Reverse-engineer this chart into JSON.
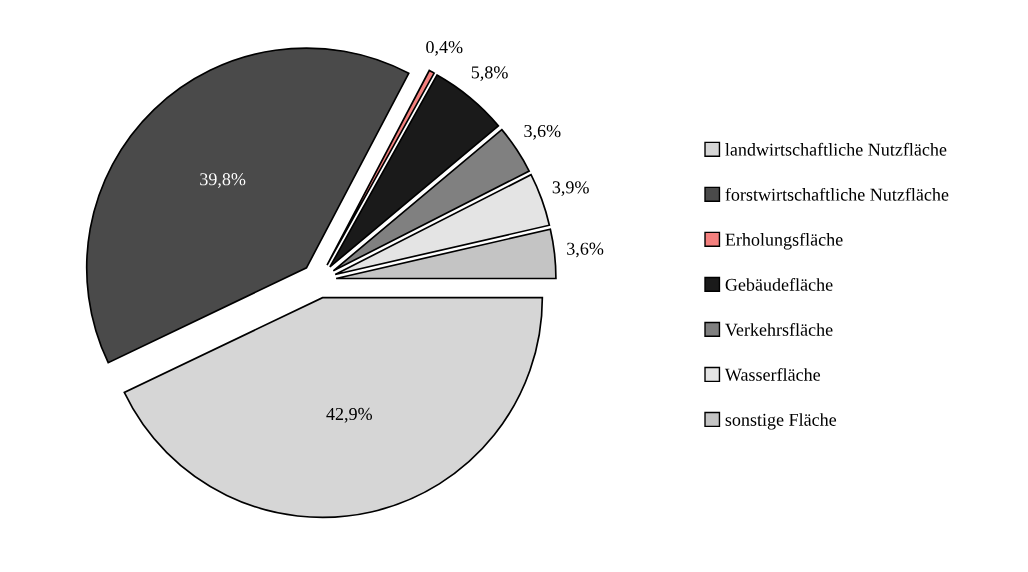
{
  "chart_data": {
    "type": "pie",
    "categories": [
      "landwirtschaftliche Nutzfläche",
      "forstwirtschaftliche Nutzfläche",
      "Erholungsfläche",
      "Gebäudefläche",
      "Verkehrsfläche",
      "Wasserfläche",
      "sonstige Fläche"
    ],
    "values": [
      42.9,
      39.8,
      0.4,
      5.8,
      3.6,
      3.9,
      3.6
    ],
    "colors": [
      "#d6d6d6",
      "#4a4a4a",
      "#f4807e",
      "#1a1a1a",
      "#808080",
      "#e4e4e4",
      "#c4c4c4"
    ],
    "value_labels": [
      "42,9%",
      "39,8%",
      "0,4%",
      "5,8%",
      "3,6%",
      "3,9%",
      "3,6%"
    ],
    "legend": "right"
  }
}
